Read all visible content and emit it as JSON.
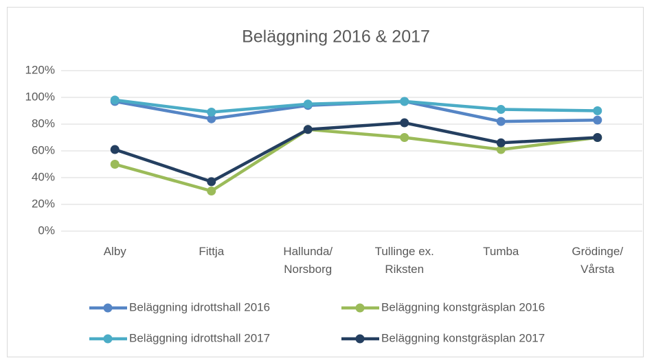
{
  "chart_data": {
    "type": "line",
    "title": "Beläggning 2016 & 2017",
    "categories": [
      "Alby",
      "Fittja",
      "Hallunda/\nNorsborg",
      "Tullinge ex.\nRiksten",
      "Tumba",
      "Grödinge/\nVårsta"
    ],
    "series": [
      {
        "name": "Beläggning idrottshall 2016",
        "color": "#5585c5",
        "values": [
          97,
          84,
          94,
          97,
          82,
          83
        ]
      },
      {
        "name": "Beläggning konstgräsplan 2016",
        "color": "#9bbb59",
        "values": [
          50,
          30,
          76,
          70,
          61,
          70
        ]
      },
      {
        "name": "Beläggning idrottshall 2017",
        "color": "#4bacc6",
        "values": [
          98,
          89,
          95,
          97,
          91,
          90
        ]
      },
      {
        "name": "Beläggning konstgräsplan 2017",
        "color": "#243f60",
        "values": [
          61,
          37,
          76,
          81,
          66,
          70
        ]
      }
    ],
    "ylim": [
      0,
      120
    ],
    "yticks": [
      {
        "value": 0,
        "label": "0%"
      },
      {
        "value": 20,
        "label": "20%"
      },
      {
        "value": 40,
        "label": "40%"
      },
      {
        "value": 60,
        "label": "60%"
      },
      {
        "value": 80,
        "label": "80%"
      },
      {
        "value": 100,
        "label": "100%"
      },
      {
        "value": 120,
        "label": "120%"
      }
    ],
    "grid": true
  }
}
